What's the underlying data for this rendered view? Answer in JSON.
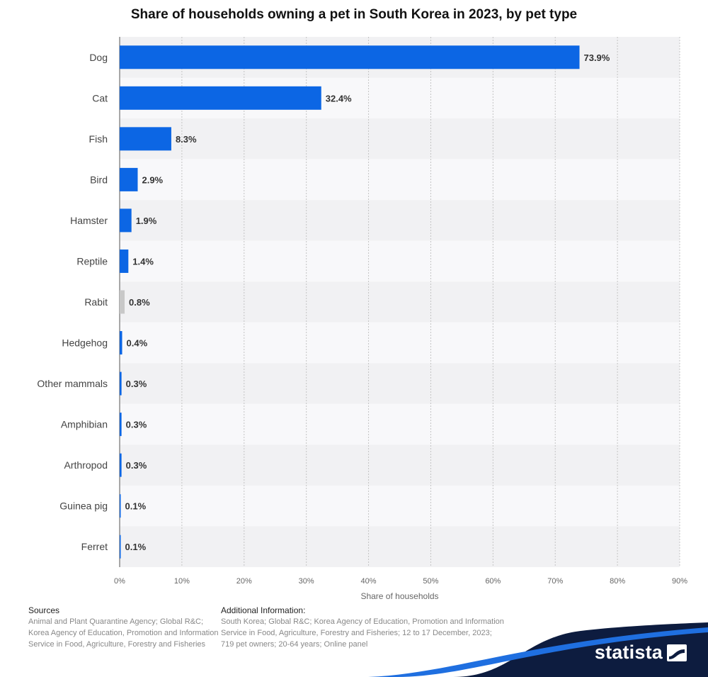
{
  "chart_data": {
    "type": "bar",
    "orientation": "horizontal",
    "title": "Share of households owning a pet in South Korea in 2023, by pet type",
    "xlabel": "Share of households",
    "ylabel": "",
    "xlim": [
      0,
      90
    ],
    "ticks": [
      "0%",
      "10%",
      "20%",
      "30%",
      "40%",
      "50%",
      "60%",
      "70%",
      "80%",
      "90%"
    ],
    "categories": [
      "Dog",
      "Cat",
      "Fish",
      "Bird",
      "Hamster",
      "Reptile",
      "Rabit",
      "Hedgehog",
      "Other mammals",
      "Amphibian",
      "Arthropod",
      "Guinea pig",
      "Ferret"
    ],
    "values": [
      73.9,
      32.4,
      8.3,
      2.9,
      1.9,
      1.4,
      0.8,
      0.4,
      0.3,
      0.3,
      0.3,
      0.1,
      0.1
    ],
    "labels": [
      "73.9%",
      "32.4%",
      "8.3%",
      "2.9%",
      "1.9%",
      "1.4%",
      "0.8%",
      "0.4%",
      "0.3%",
      "0.3%",
      "0.3%",
      "0.1%",
      "0.1%"
    ],
    "bar_colors": [
      "#0c66e4",
      "#0c66e4",
      "#0c66e4",
      "#0c66e4",
      "#0c66e4",
      "#0c66e4",
      "#c8c8c8",
      "#0c66e4",
      "#0c66e4",
      "#0c66e4",
      "#0c66e4",
      "#0c66e4",
      "#0c66e4"
    ],
    "grid": true
  },
  "footer": {
    "sources_heading": "Sources",
    "sources_text": "Animal and Plant Quarantine Agency; Global R&C; Korea Agency of Education, Promotion and Information Service in Food, Agriculture, Forestry and Fisheries",
    "info_heading": "Additional Information:",
    "info_text": "South Korea; Global R&C; Korea Agency of Education, Promotion and Information Service in Food, Agriculture, Forestry and Fisheries; 12 to 17 December, 2023; 719 pet owners; 20-64 years; Online panel"
  },
  "brand": {
    "name": "statista",
    "color": "#0d1c3f"
  }
}
